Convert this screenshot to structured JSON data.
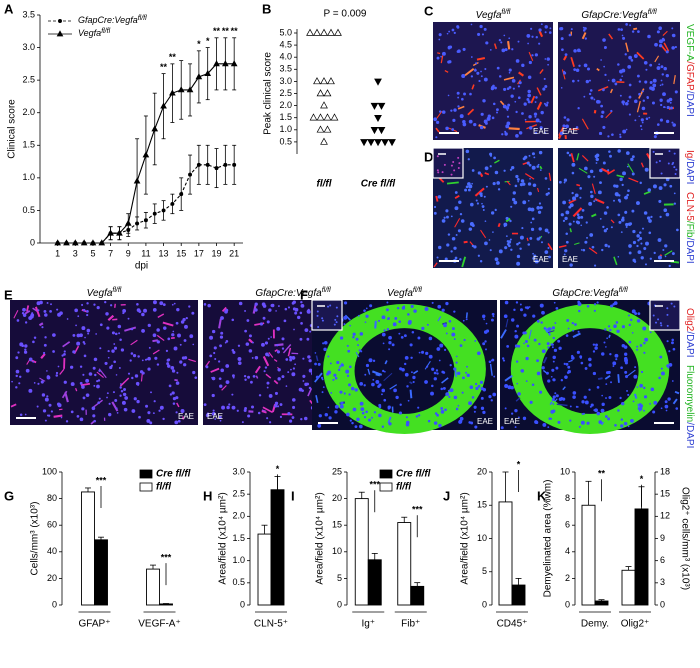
{
  "chart_data": [
    {
      "type": "line",
      "panel": "A",
      "ylabel": "Clinical score",
      "xlabel": "dpi",
      "x": [
        1,
        2,
        3,
        4,
        5,
        6,
        7,
        8,
        9,
        10,
        11,
        12,
        13,
        14,
        15,
        16,
        17,
        18,
        19,
        20,
        21
      ],
      "xlim": [
        -1,
        22
      ],
      "xticks": [
        1,
        3,
        5,
        7,
        9,
        11,
        13,
        15,
        17,
        19,
        21
      ],
      "ylim": [
        0,
        3.5
      ],
      "yticks": [
        0,
        0.5,
        {
          "value": 1,
          "label": "1.0"
        },
        1.5,
        {
          "value": 2,
          "label": "2.0"
        },
        2.5,
        {
          "value": 3,
          "label": "3.0"
        },
        3.5
      ],
      "legend": "upper left",
      "series": [
        {
          "name": "GfapCre:Vegfa",
          "name_sup": "fl/fl",
          "color": "#000",
          "dashed": true,
          "marker": "circle",
          "values": [
            0,
            0,
            0,
            0,
            0,
            0,
            0.15,
            0.15,
            0.2,
            0.3,
            0.35,
            0.45,
            0.5,
            0.6,
            0.75,
            1.05,
            1.2,
            1.2,
            1.15,
            1.2,
            1.2
          ],
          "errors": [
            0,
            0,
            0,
            0,
            0,
            0,
            0.1,
            0.1,
            0.1,
            0.1,
            0.12,
            0.15,
            0.15,
            0.15,
            0.25,
            0.3,
            0.3,
            0.3,
            0.3,
            0.3,
            0.3
          ]
        },
        {
          "name": "Vegfa",
          "name_sup": "fl/fl",
          "color": "#000",
          "dashed": false,
          "marker": "triangle-up",
          "values": [
            0,
            0,
            0,
            0,
            0,
            0,
            0.15,
            0.15,
            0.3,
            0.95,
            1.35,
            1.75,
            2.1,
            2.3,
            2.35,
            2.35,
            2.55,
            2.6,
            2.75,
            2.75,
            2.75
          ],
          "errors": [
            0,
            0,
            0,
            0,
            0,
            0,
            0.1,
            0.1,
            0.15,
            0.65,
            0.6,
            0.55,
            0.5,
            0.45,
            0.45,
            0.4,
            0.4,
            0.4,
            0.4,
            0.4,
            0.4
          ]
        }
      ],
      "annotations": [
        {
          "x": 13,
          "text": "**"
        },
        {
          "x": 14,
          "text": "**"
        },
        {
          "x": 17,
          "text": "*"
        },
        {
          "x": 18,
          "text": "*"
        },
        {
          "x": 19,
          "text": "**"
        },
        {
          "x": 20,
          "text": "**"
        },
        {
          "x": 21,
          "text": "**"
        }
      ]
    },
    {
      "type": "dot",
      "panel": "B",
      "title": "P = 0.009",
      "ylabel": "Peak clinical score",
      "categories": [
        "fl/fl",
        "Cre fl/fl"
      ],
      "markers": [
        "triangle-up",
        "triangle-down"
      ],
      "marker_fill": [
        "none",
        "#000"
      ],
      "values": [
        [
          5,
          5,
          5,
          5,
          5,
          3,
          3,
          3,
          2.5,
          2.5,
          2,
          1.5,
          1.5,
          1.5,
          1.5,
          1,
          1,
          0.5
        ],
        [
          3,
          2,
          2,
          1.5,
          1,
          1,
          0.5,
          0.5,
          0.5,
          0.5,
          0.5
        ]
      ],
      "ylim": [
        0,
        5
      ],
      "yticks": [
        0.5,
        {
          "value": 1,
          "label": "1.0"
        },
        1.5,
        {
          "value": 2,
          "label": "2.0"
        },
        2.5,
        {
          "value": 3,
          "label": "3.0"
        },
        3.5,
        {
          "value": 4,
          "label": "4.0"
        },
        4.5,
        {
          "value": 5,
          "label": "5.0"
        }
      ]
    },
    {
      "type": "bar",
      "panel": "G",
      "ylabel": "Cells/mm³ (x10³)",
      "categories": [
        "GFAP⁺",
        "VEGF-A⁺"
      ],
      "ylim": [
        0,
        100
      ],
      "yticks": [
        0,
        20,
        40,
        60,
        80,
        100
      ],
      "legend": "upper right",
      "series": [
        {
          "name": "fl/fl",
          "color": "#fff",
          "values": [
            85,
            27
          ],
          "errors": [
            3,
            3
          ]
        },
        {
          "name": "Cre fl/fl",
          "color": "#000",
          "values": [
            49,
            0.8
          ],
          "errors": [
            2,
            0.3
          ]
        }
      ],
      "annotations": [
        {
          "category": 0,
          "text": "***"
        },
        {
          "category": 1,
          "text": "***"
        }
      ]
    },
    {
      "type": "bar",
      "panel": "H",
      "ylabel": "Area/field (x10⁴ µm²)",
      "categories": [
        "CLN-5⁺"
      ],
      "ylim": [
        0,
        3
      ],
      "yticks": [
        0,
        0.5,
        {
          "value": 1,
          "label": "1.0"
        },
        1.5,
        {
          "value": 2,
          "label": "2.0"
        },
        2.5,
        {
          "value": 3,
          "label": "3.0"
        }
      ],
      "series": [
        {
          "color": "#fff",
          "values": [
            1.6
          ],
          "errors": [
            0.2
          ]
        },
        {
          "color": "#000",
          "values": [
            2.6
          ],
          "errors": [
            0.3
          ]
        }
      ],
      "annotations": [
        {
          "category": 0,
          "text": "*"
        }
      ]
    },
    {
      "type": "bar",
      "panel": "I",
      "ylabel": "Area/field (x10⁴ µm²)",
      "categories": [
        "Ig⁺",
        "Fib⁺"
      ],
      "ylim": [
        0,
        25
      ],
      "yticks": [
        0,
        5,
        10,
        15,
        20,
        25
      ],
      "legend": "upper right",
      "series": [
        {
          "name": "fl/fl",
          "color": "#fff",
          "values": [
            20,
            15.5
          ],
          "errors": [
            1.2,
            1
          ]
        },
        {
          "name": "Cre fl/fl",
          "color": "#000",
          "values": [
            8.5,
            3.5
          ],
          "errors": [
            1.2,
            0.7
          ]
        }
      ],
      "annotations": [
        {
          "category": 0,
          "text": "***"
        },
        {
          "category": 1,
          "text": "***"
        }
      ]
    },
    {
      "type": "bar",
      "panel": "J",
      "ylabel": "Area/field (x10⁴ µm²)",
      "categories": [
        "CD45⁺"
      ],
      "ylim": [
        0,
        20
      ],
      "yticks": [
        0,
        5,
        10,
        15,
        20
      ],
      "series": [
        {
          "color": "#fff",
          "values": [
            15.5
          ],
          "errors": [
            4.5
          ]
        },
        {
          "color": "#000",
          "values": [
            3
          ],
          "errors": [
            1
          ]
        }
      ],
      "annotations": [
        {
          "category": 0,
          "text": "*"
        }
      ]
    },
    {
      "type": "bar",
      "panel": "K",
      "ylabel": "Demyelinated area (%wm)",
      "y2label": "Olig2⁺ cells/mm³ (x10³)",
      "categories": [
        "Demy.",
        "Olig2⁺"
      ],
      "ylim": [
        0,
        10
      ],
      "yticks": [
        0,
        2,
        4,
        6,
        8,
        10
      ],
      "y2lim": [
        0,
        18
      ],
      "y2ticks": [
        0,
        3,
        6,
        9,
        12,
        15,
        18
      ],
      "series": [
        {
          "color": "#fff",
          "values": [
            7.5,
            null
          ],
          "errors": [
            1.8,
            null
          ]
        },
        {
          "color": "#000",
          "values": [
            0.3,
            null
          ],
          "errors": [
            0.1,
            null
          ]
        },
        {
          "color": "#fff",
          "axis": "y2",
          "values": [
            null,
            4.7
          ],
          "errors": [
            null,
            0.5
          ]
        },
        {
          "color": "#000",
          "axis": "y2",
          "values": [
            null,
            13
          ],
          "errors": [
            null,
            3
          ]
        }
      ],
      "annotations": [
        {
          "category": 0,
          "text": "**"
        },
        {
          "category": 1,
          "text": "*"
        }
      ]
    }
  ],
  "micrographs": [
    {
      "panel": "C",
      "images": [
        {
          "title": "Vegfa",
          "title_sup": "fl/fl",
          "note": "EAE"
        },
        {
          "title": "GfapCre:Vegfa",
          "title_sup": "fl/fl",
          "note": "EAE"
        }
      ],
      "stain": [
        [
          {
            "text": "VEGF-A",
            "color": "#22b422"
          },
          {
            "text": "/GFAP",
            "color": "#e02020"
          },
          {
            "text": "/DAPI",
            "color": "#2a3cd0"
          }
        ]
      ]
    },
    {
      "panel": "D",
      "images": [
        {
          "note": "EAE"
        },
        {
          "note": "EAE"
        }
      ],
      "stain": [
        [
          {
            "text": "Ig",
            "color": "#e02020"
          },
          {
            "text": "/DAPI",
            "color": "#2a3cd0"
          }
        ],
        [
          {
            "text": "CLN-5",
            "color": "#e02020"
          },
          {
            "text": "/Fib",
            "color": "#22b422"
          },
          {
            "text": "/DAPI",
            "color": "#2a3cd0"
          }
        ]
      ]
    },
    {
      "panel": "E",
      "images": [
        {
          "title": "Vegfa",
          "title_sup": "fl/fl",
          "note": "EAE"
        },
        {
          "title": "GfapCre:Vegfa",
          "title_sup": "fl/fl",
          "note": "EAE"
        }
      ],
      "stain": [
        [
          {
            "text": "CD45",
            "color": "#e020b0"
          },
          {
            "text": "/DAPI",
            "color": "#2a3cd0"
          }
        ]
      ]
    },
    {
      "panel": "F",
      "images": [
        {
          "title": "Vegfa",
          "title_sup": "fl/fl",
          "note": "EAE"
        },
        {
          "title": "GfapCre:Vegfa",
          "title_sup": "fl/fl",
          "note": "EAE"
        }
      ],
      "stain": [
        [
          {
            "text": "Olig2",
            "color": "#e02020"
          },
          {
            "text": "/DAPI",
            "color": "#2a3cd0"
          }
        ],
        [
          {
            "text": "Fluoromyelin",
            "color": "#22b422"
          },
          {
            "text": "/DAPI",
            "color": "#2a3cd0"
          }
        ]
      ]
    }
  ]
}
